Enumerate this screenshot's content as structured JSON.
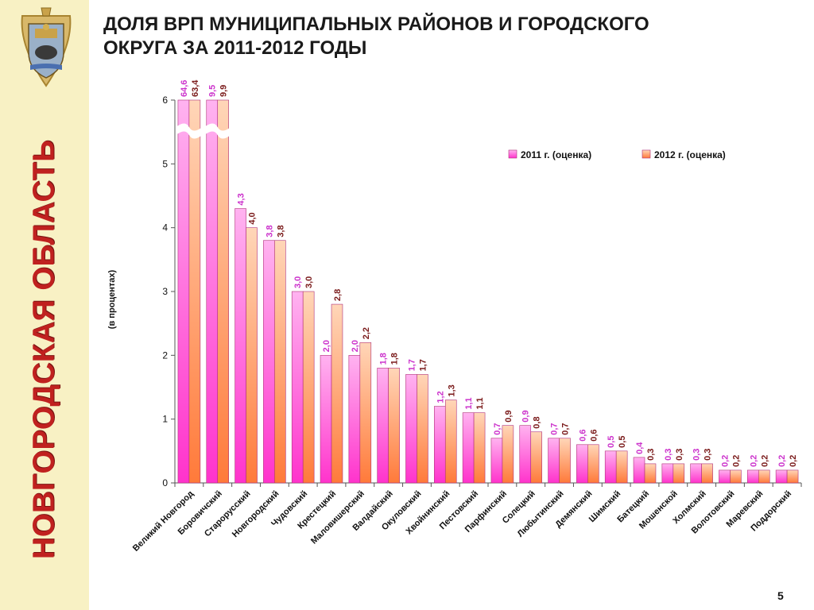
{
  "sidebar": {
    "region_label": "НОВГОРОДСКАЯ ОБЛАСТЬ",
    "background_color": "#f8f1c4",
    "label_color": "#c0211f",
    "crest_icon": "novgorod-coat-of-arms-icon"
  },
  "slide": {
    "title_line1": "ДОЛЯ ВРП МУНИЦИПАЛЬНЫХ РАЙОНОВ И ГОРОДСКОГО",
    "title_line2": "ОКРУГА ЗА 2011-2012 ГОДЫ",
    "page_number": "5"
  },
  "chart_data": {
    "type": "bar",
    "title": "",
    "xlabel": "",
    "ylabel": "(в процентах)",
    "ylim": [
      0,
      6
    ],
    "yticks": [
      "0",
      "1",
      "2",
      "3",
      "4",
      "5",
      "6"
    ],
    "grid": false,
    "legend_position": "top-right",
    "axis_break": "values above 6 are truncated with a break mark",
    "categories": [
      "Великий Новгород",
      "Боровичский",
      "Старорусский",
      "Новгородский",
      "Чудовский",
      "Крестецкий",
      "Маловишерский",
      "Валдайский",
      "Окуловский",
      "Хвойнинский",
      "Пестовский",
      "Парфинский",
      "Солецкий",
      "Любытинский",
      "Демянский",
      "Шимский",
      "Батецкий",
      "Мошенской",
      "Холмский",
      "Волотовский",
      "Маревский",
      "Поддорский"
    ],
    "series": [
      {
        "name": "2011 г. (оценка)",
        "color": "#ff55dd",
        "label_color": "#cc33cc",
        "values": [
          64.6,
          9.5,
          4.3,
          3.8,
          3.0,
          2.0,
          2.0,
          1.8,
          1.7,
          1.2,
          1.1,
          0.7,
          0.9,
          0.7,
          0.6,
          0.5,
          0.4,
          0.3,
          0.3,
          0.2,
          0.2,
          0.2
        ],
        "labels": [
          "64,6",
          "9,5",
          "4,3",
          "3,8",
          "3,0",
          "2,0",
          "2,0",
          "1,8",
          "1,7",
          "1,2",
          "1,1",
          "0,7",
          "0,9",
          "0,7",
          "0,6",
          "0,5",
          "0,4",
          "0,3",
          "0,3",
          "0,2",
          "0,2",
          "0,2"
        ]
      },
      {
        "name": "2012 г. (оценка)",
        "color": "#ffaa77",
        "label_color": "#7a1a1a",
        "values": [
          63.4,
          9.9,
          4.0,
          3.8,
          3.0,
          2.8,
          2.2,
          1.8,
          1.7,
          1.3,
          1.1,
          0.9,
          0.8,
          0.7,
          0.6,
          0.5,
          0.3,
          0.3,
          0.3,
          0.2,
          0.2,
          0.2
        ],
        "labels": [
          "63,4",
          "9,9",
          "4,0",
          "3,8",
          "3,0",
          "2,8",
          "2,2",
          "1,8",
          "1,7",
          "1,3",
          "1,1",
          "0,9",
          "0,8",
          "0,7",
          "0,6",
          "0,5",
          "0,3",
          "0,3",
          "0,3",
          "0,2",
          "0,2",
          "0,2"
        ]
      }
    ]
  }
}
